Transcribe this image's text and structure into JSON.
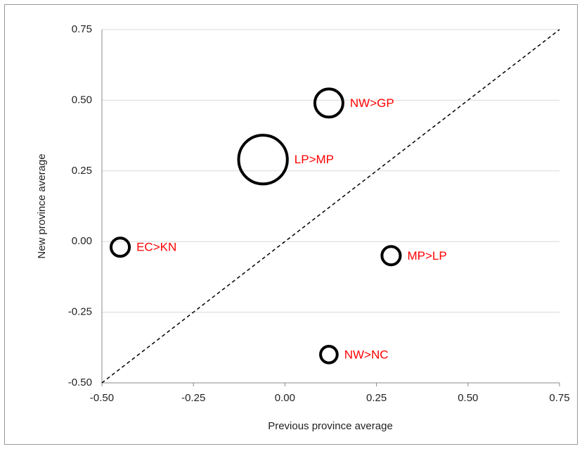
{
  "chart_data": {
    "type": "bubble",
    "x_label": "Previous province average",
    "y_label": "New province average",
    "x": [
      0.12,
      -0.06,
      -0.45,
      0.29,
      0.12
    ],
    "values": [
      0.49,
      0.29,
      -0.02,
      -0.05,
      -0.4
    ],
    "sizes": [
      4,
      12,
      1.7,
      1.7,
      1.4
    ],
    "labels": [
      "NW>GP",
      "LP>MP",
      "EC>KN",
      "MP>LP",
      "NW>NC"
    ],
    "label_color": "#ff0000",
    "color": "#000000",
    "xlim": [
      -0.5,
      0.75
    ],
    "ylim": [
      -0.5,
      0.75
    ],
    "xticks": [
      {
        "value": -0.5,
        "label": "-0.50"
      },
      {
        "value": -0.25,
        "label": "-0.25"
      },
      {
        "value": 0,
        "label": "0.00"
      },
      {
        "value": 0.25,
        "label": "0.25"
      },
      {
        "value": 0.5,
        "label": "0.50"
      },
      {
        "value": 0.75,
        "label": "0.75"
      }
    ],
    "yticks": [
      {
        "value": -0.5,
        "label": "-0.50"
      },
      {
        "value": -0.25,
        "label": "-0.25"
      },
      {
        "value": 0,
        "label": "0.00"
      },
      {
        "value": 0.25,
        "label": "0.25"
      },
      {
        "value": 0.5,
        "label": "0.50"
      },
      {
        "value": 0.75,
        "label": "0.75"
      }
    ],
    "grid": true,
    "diagonal": true
  }
}
